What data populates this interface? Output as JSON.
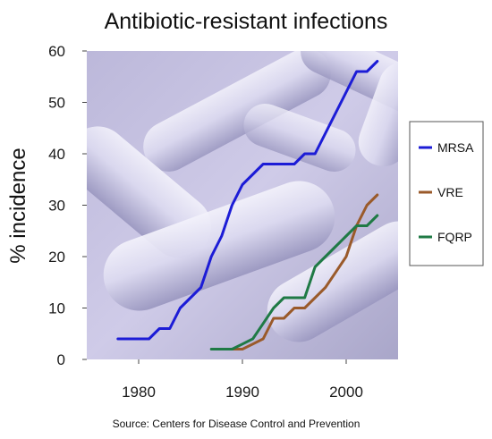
{
  "chart_data": {
    "type": "line",
    "title": "Antibiotic-resistant infections",
    "xlabel": "",
    "ylabel": "% incidence",
    "xlim": [
      1975,
      2005
    ],
    "ylim": [
      0,
      60
    ],
    "xticks": [
      1980,
      1990,
      2000
    ],
    "yticks": [
      0,
      10,
      20,
      30,
      40,
      50,
      60
    ],
    "legend_position": "right",
    "background": "photo of rod-shaped bacteria (lavender tint)",
    "series": [
      {
        "name": "MRSA",
        "color": "#1c1cd6",
        "x": [
          1978,
          1981,
          1982,
          1983,
          1984,
          1985,
          1986,
          1987,
          1988,
          1989,
          1990,
          1991,
          1992,
          1993,
          1994,
          1995,
          1996,
          1997,
          1998,
          1999,
          2000,
          2001,
          2002,
          2003
        ],
        "y": [
          4,
          4,
          6,
          6,
          10,
          12,
          14,
          20,
          24,
          30,
          34,
          36,
          38,
          38,
          38,
          38,
          40,
          40,
          44,
          48,
          52,
          56,
          56,
          58
        ]
      },
      {
        "name": "VRE",
        "color": "#9a5a2a",
        "x": [
          1989,
          1990,
          1991,
          1992,
          1993,
          1994,
          1995,
          1996,
          1997,
          1998,
          1999,
          2000,
          2001,
          2002,
          2003
        ],
        "y": [
          2,
          2,
          3,
          4,
          8,
          8,
          10,
          10,
          12,
          14,
          17,
          20,
          26,
          30,
          32
        ]
      },
      {
        "name": "FQRP",
        "color": "#1f7a45",
        "x": [
          1987,
          1988,
          1989,
          1990,
          1991,
          1992,
          1993,
          1994,
          1995,
          1996,
          1997,
          1998,
          1999,
          2000,
          2001,
          2002,
          2003
        ],
        "y": [
          2,
          2,
          2,
          3,
          4,
          7,
          10,
          12,
          12,
          12,
          18,
          20,
          22,
          24,
          26,
          26,
          28
        ]
      }
    ],
    "source": "Source:  Centers for Disease Control and Prevention"
  }
}
